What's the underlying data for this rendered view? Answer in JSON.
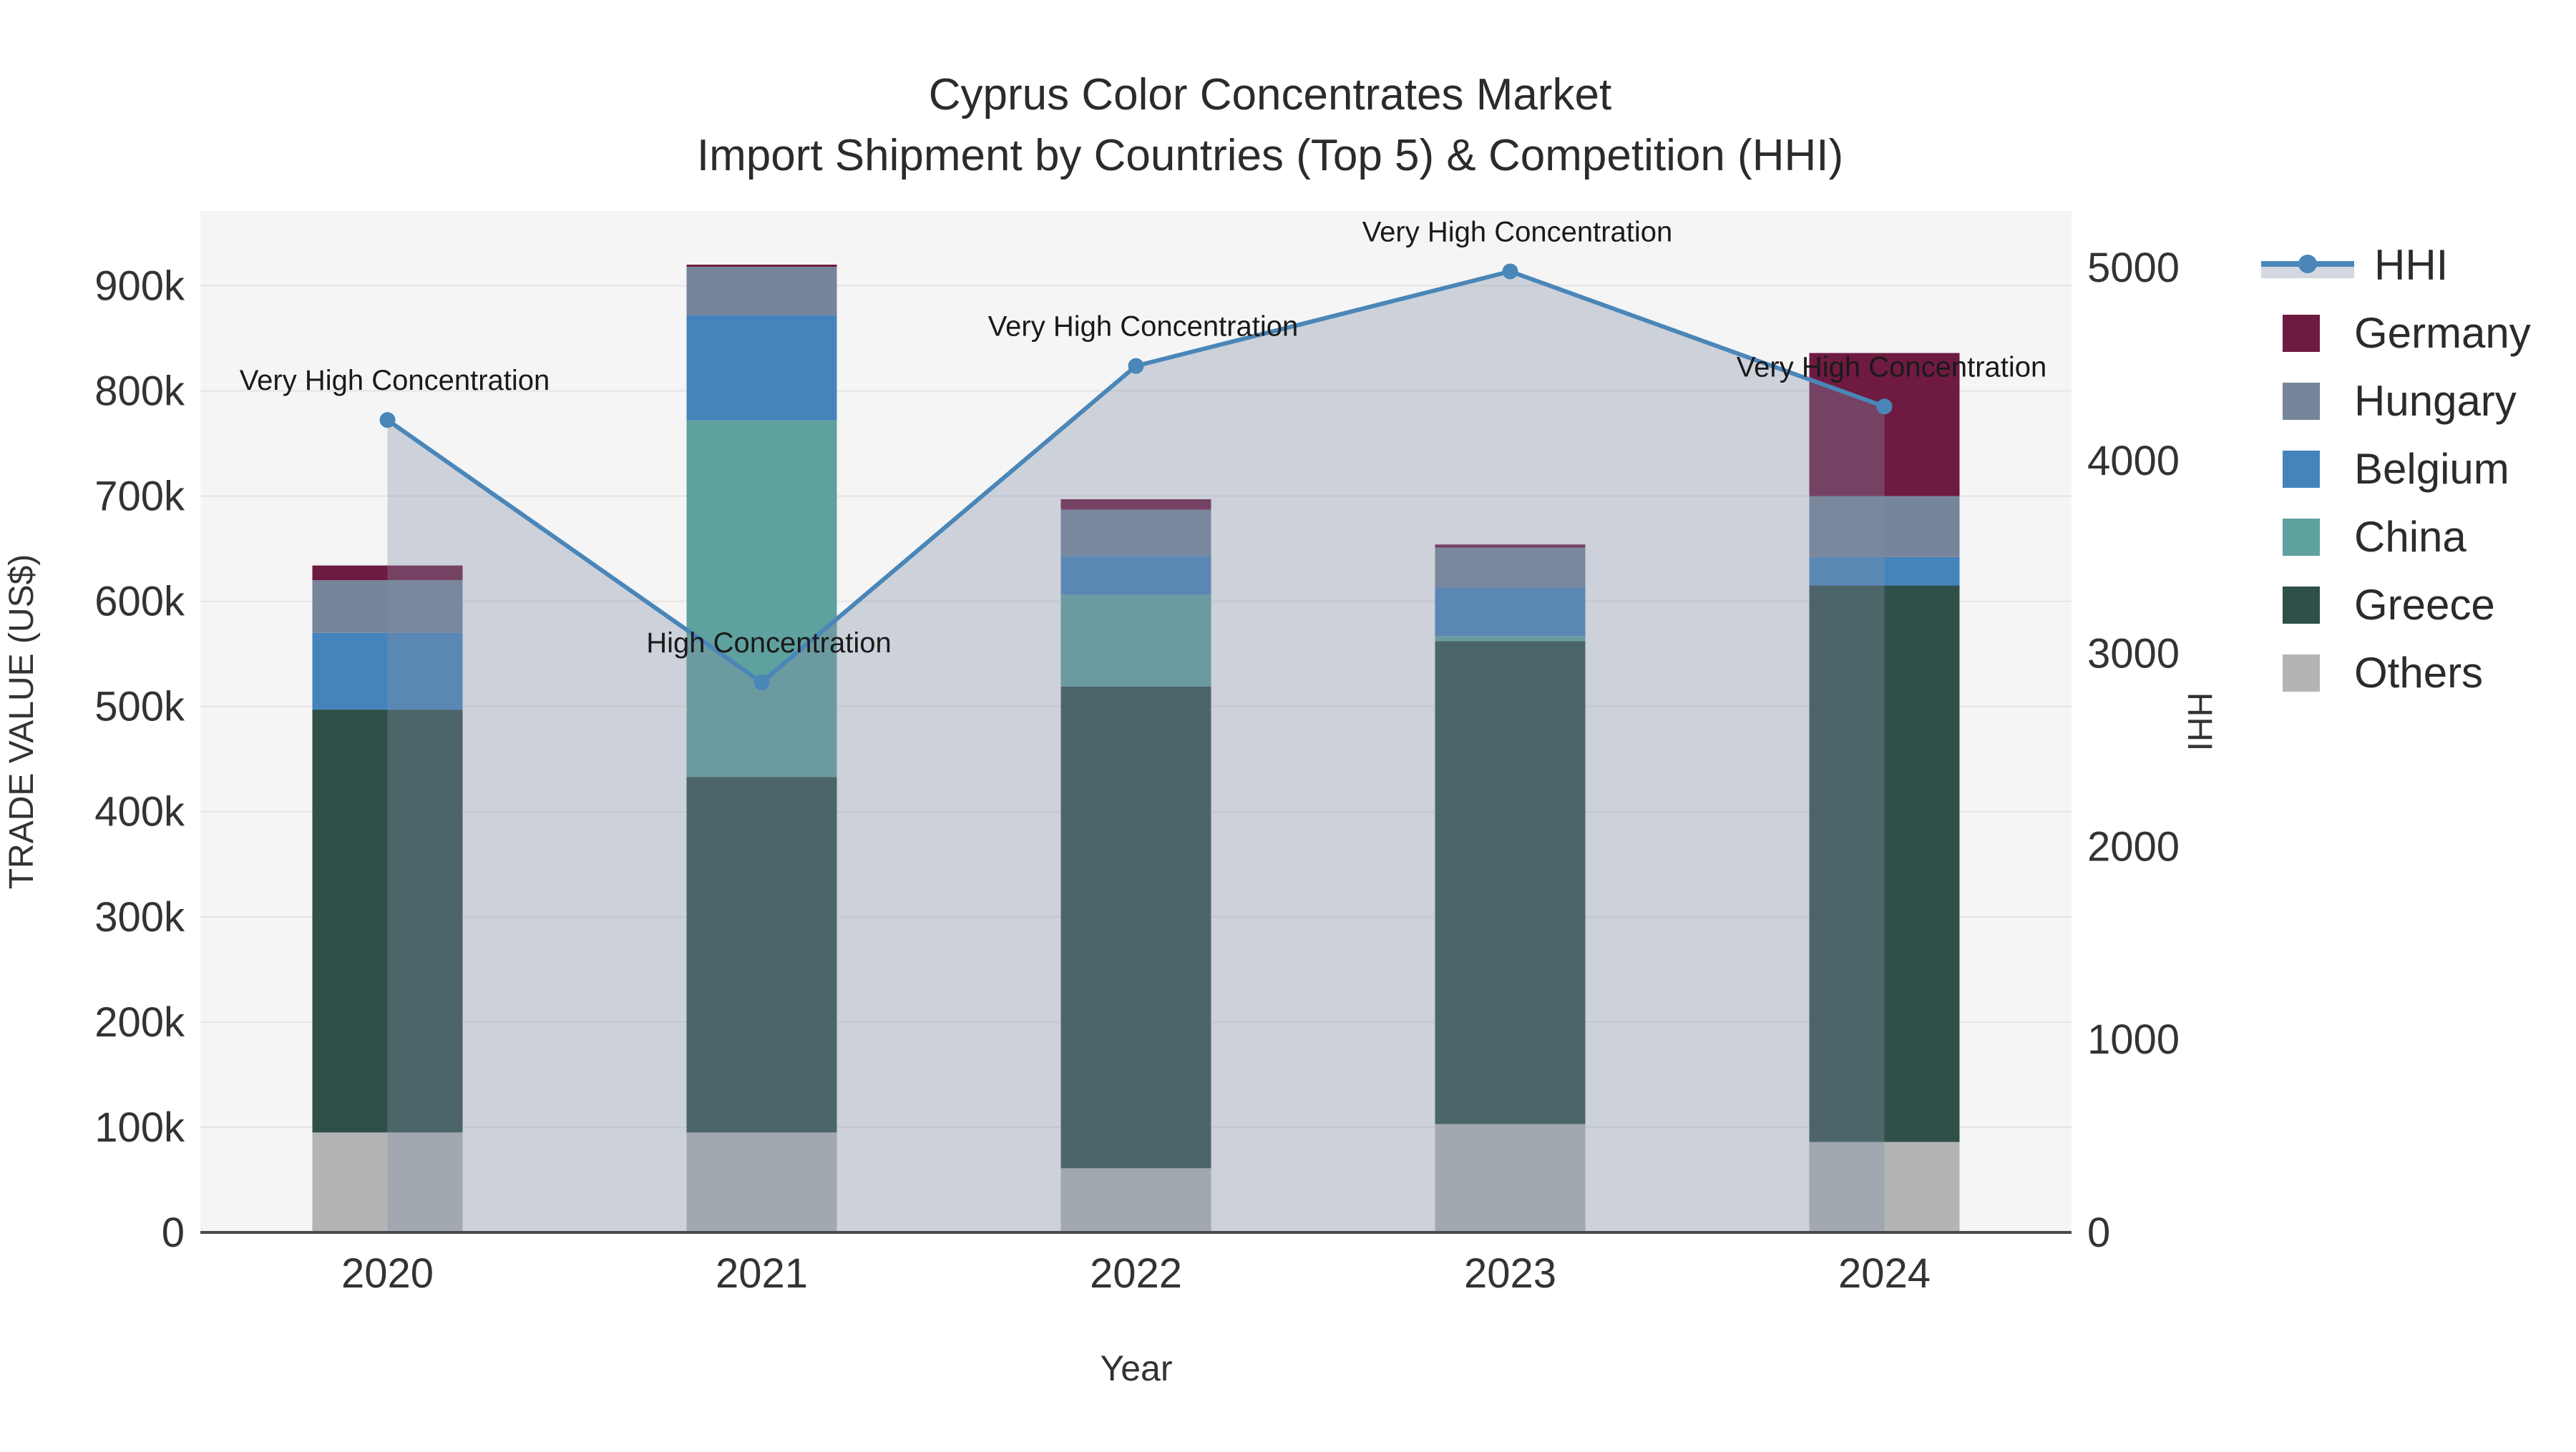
{
  "title": {
    "line1": "Cyprus Color Concentrates Market",
    "line2": "Import Shipment by Countries (Top 5) & Competition (HHI)"
  },
  "chart_data": {
    "type": "bar-stacked+line",
    "categories": [
      "2020",
      "2021",
      "2022",
      "2023",
      "2024"
    ],
    "stack_order_bottom_to_top": [
      "Others",
      "Greece",
      "China",
      "Belgium",
      "Hungary",
      "Germany"
    ],
    "series": [
      {
        "name": "Others",
        "color": "#b3b5b5",
        "values": [
          95000,
          95000,
          61000,
          103000,
          86000
        ]
      },
      {
        "name": "Greece",
        "color": "#2f4f49",
        "values": [
          402000,
          338000,
          458000,
          459000,
          529000
        ]
      },
      {
        "name": "China",
        "color": "#5ea19f",
        "values": [
          0,
          339000,
          87000,
          5000,
          0
        ]
      },
      {
        "name": "Belgium",
        "color": "#4583bd",
        "values": [
          73000,
          100000,
          37000,
          46000,
          27000
        ]
      },
      {
        "name": "Hungary",
        "color": "#76859a",
        "values": [
          50000,
          46000,
          44000,
          38000,
          58000
        ]
      },
      {
        "name": "Germany",
        "color": "#6f1a41",
        "values": [
          14000,
          2000,
          10000,
          3000,
          136000
        ]
      }
    ],
    "bar_totals": [
      634000,
      920000,
      697000,
      654000,
      836000
    ],
    "hhi": {
      "name": "HHI",
      "values": [
        4210,
        2850,
        4490,
        4980,
        4280
      ],
      "line_color": "#4a86b8",
      "area_fill": "rgba(131,143,166,0.35)"
    },
    "annotations": [
      "Very High Concentration",
      "High Concentration",
      "Very High Concentration",
      "Very High Concentration",
      "Very High Concentration"
    ],
    "x_axis": {
      "title": "Year"
    },
    "y_left": {
      "title": "TRADE VALUE (US$)",
      "range": [
        0,
        971000
      ],
      "tick_values": [
        0,
        100000,
        200000,
        300000,
        400000,
        500000,
        600000,
        700000,
        800000,
        900000
      ],
      "tick_labels": [
        "0",
        "100k",
        "200k",
        "300k",
        "400k",
        "500k",
        "600k",
        "700k",
        "800k",
        "900k"
      ],
      "grid": true
    },
    "y_right": {
      "title": "HHI",
      "range": [
        0,
        5293
      ],
      "tick_values": [
        0,
        1000,
        2000,
        3000,
        4000,
        5000
      ],
      "tick_labels": [
        "0",
        "1000",
        "2000",
        "3000",
        "4000",
        "5000"
      ],
      "grid": false
    },
    "legend_position": "right"
  },
  "legend": [
    {
      "label": "HHI",
      "type": "line",
      "color": "#4a86b8"
    },
    {
      "label": "Germany",
      "type": "swatch",
      "color": "#6f1a41"
    },
    {
      "label": "Hungary",
      "type": "swatch",
      "color": "#76859a"
    },
    {
      "label": "Belgium",
      "type": "swatch",
      "color": "#4583bd"
    },
    {
      "label": "China",
      "type": "swatch",
      "color": "#5ea19f"
    },
    {
      "label": "Greece",
      "type": "swatch",
      "color": "#2f4f49"
    },
    {
      "label": "Others",
      "type": "swatch",
      "color": "#b3b5b5"
    }
  ],
  "style": {
    "plot_bg": "#f5f5f5",
    "grid_color": "#e4e4e4",
    "axis_line_color": "#4a4a4a"
  }
}
